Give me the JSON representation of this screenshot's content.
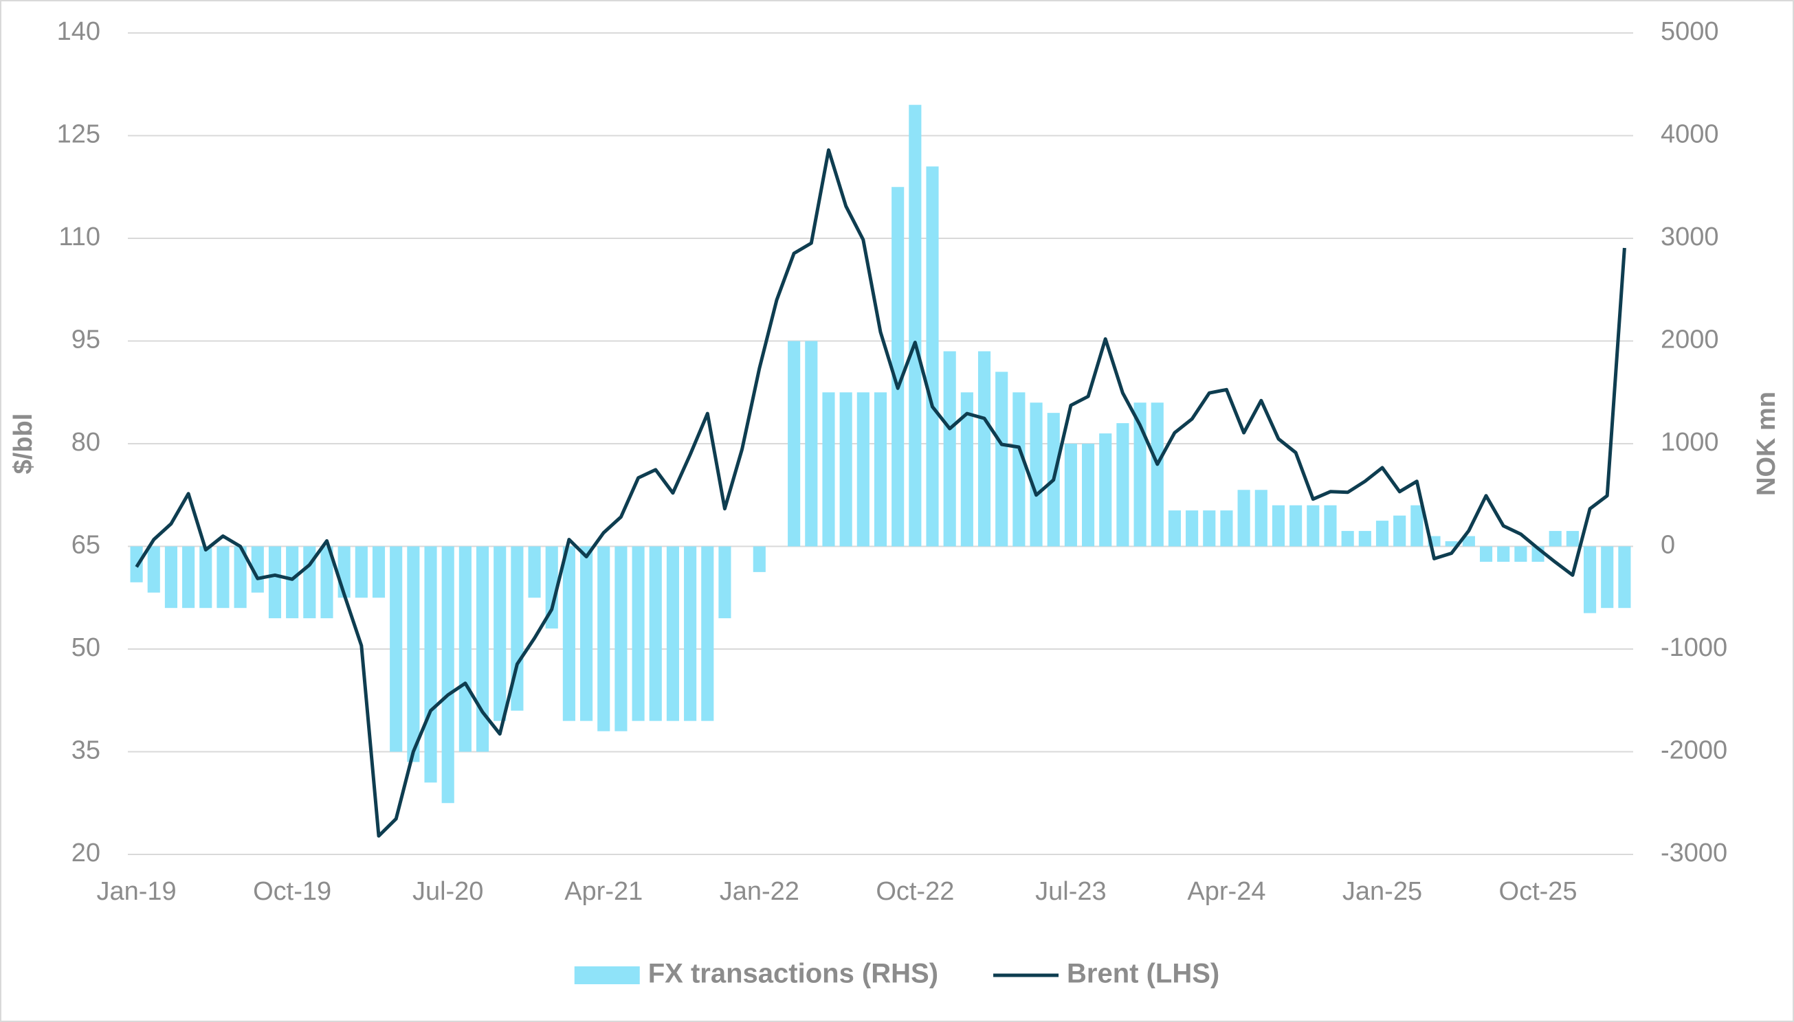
{
  "chart_data": {
    "type": "combo",
    "y_label": "$/bbl",
    "y2_label": "NOK mn",
    "categories": [
      "Jan-19",
      null,
      null,
      null,
      null,
      null,
      null,
      null,
      null,
      "Oct-19",
      null,
      null,
      null,
      null,
      null,
      null,
      null,
      null,
      "Jul-20",
      null,
      null,
      null,
      null,
      null,
      null,
      null,
      null,
      "Apr-21",
      null,
      null,
      null,
      null,
      null,
      null,
      null,
      null,
      "Jan-22",
      null,
      null,
      null,
      null,
      null,
      null,
      null,
      null,
      "Oct-22",
      null,
      null,
      null,
      null,
      null,
      null,
      null,
      null,
      "Jul-23",
      null,
      null,
      null,
      null,
      null,
      null,
      null,
      null,
      "Apr-24",
      null,
      null,
      null,
      null,
      null,
      null,
      null,
      null,
      "Jan-25",
      null,
      null,
      null,
      null,
      null,
      null,
      null,
      null,
      "Oct-25",
      null,
      null,
      null,
      null,
      null
    ],
    "series": [
      {
        "name": "FX transactions (RHS)",
        "type": "bar",
        "axis": "y2",
        "color": "#8fe3f9",
        "values": [
          -350,
          -450,
          -600,
          -600,
          -600,
          -600,
          -600,
          -450,
          -700,
          -700,
          -700,
          -700,
          -500,
          -500,
          -500,
          -2000,
          -2100,
          -2300,
          -2500,
          -2000,
          -2000,
          -1700,
          -1600,
          -500,
          -800,
          -1700,
          -1700,
          -1800,
          -1800,
          -1700,
          -1700,
          -1700,
          -1700,
          -1700,
          -700,
          0,
          -250,
          0,
          2000,
          2000,
          1500,
          1500,
          1500,
          1500,
          3500,
          4300,
          3700,
          1900,
          1500,
          1900,
          1700,
          1500,
          1400,
          1300,
          1000,
          1000,
          1100,
          1200,
          1400,
          1400,
          350,
          350,
          350,
          350,
          550,
          550,
          400,
          400,
          400,
          400,
          150,
          150,
          250,
          300,
          400,
          100,
          50,
          100,
          -150,
          -150,
          -150,
          -150,
          150,
          150,
          -650,
          -600,
          -600
        ]
      },
      {
        "name": "Brent (LHS)",
        "type": "line",
        "axis": "y",
        "color": "#0e3d50",
        "values": [
          62.0,
          66.0,
          68.3,
          72.7,
          64.5,
          66.5,
          65.0,
          60.3,
          60.8,
          60.2,
          62.3,
          65.8,
          58.0,
          50.5,
          22.7,
          25.2,
          35.0,
          41.0,
          43.3,
          45.0,
          40.8,
          37.6,
          47.8,
          51.6,
          55.8,
          66.0,
          63.5,
          67.0,
          69.3,
          75.0,
          76.2,
          72.8,
          78.4,
          84.4,
          70.5,
          79.2,
          91.0,
          101.0,
          107.8,
          109.3,
          122.9,
          114.7,
          109.8,
          96.3,
          88.1,
          94.8,
          85.4,
          82.2,
          84.4,
          83.7,
          79.9,
          79.5,
          72.5,
          74.7,
          85.6,
          86.9,
          95.3,
          87.4,
          82.7,
          77.0,
          81.6,
          83.6,
          87.4,
          87.9,
          81.6,
          86.3,
          80.7,
          78.7,
          71.9,
          73.0,
          72.9,
          74.5,
          76.5,
          73.0,
          74.5,
          63.2,
          64.0,
          67.3,
          72.4,
          68.0,
          66.8,
          64.7,
          62.7,
          60.8,
          70.5,
          72.4,
          108.6
        ]
      }
    ],
    "ylim": [
      20,
      140
    ],
    "yticks": [
      20,
      35,
      50,
      65,
      80,
      95,
      110,
      125,
      140
    ],
    "y2lim": [
      -3000,
      5000
    ],
    "y2ticks": [
      -3000,
      -2000,
      -1000,
      0,
      1000,
      2000,
      3000,
      4000,
      5000
    ],
    "grid": true,
    "legend": "bottom"
  }
}
